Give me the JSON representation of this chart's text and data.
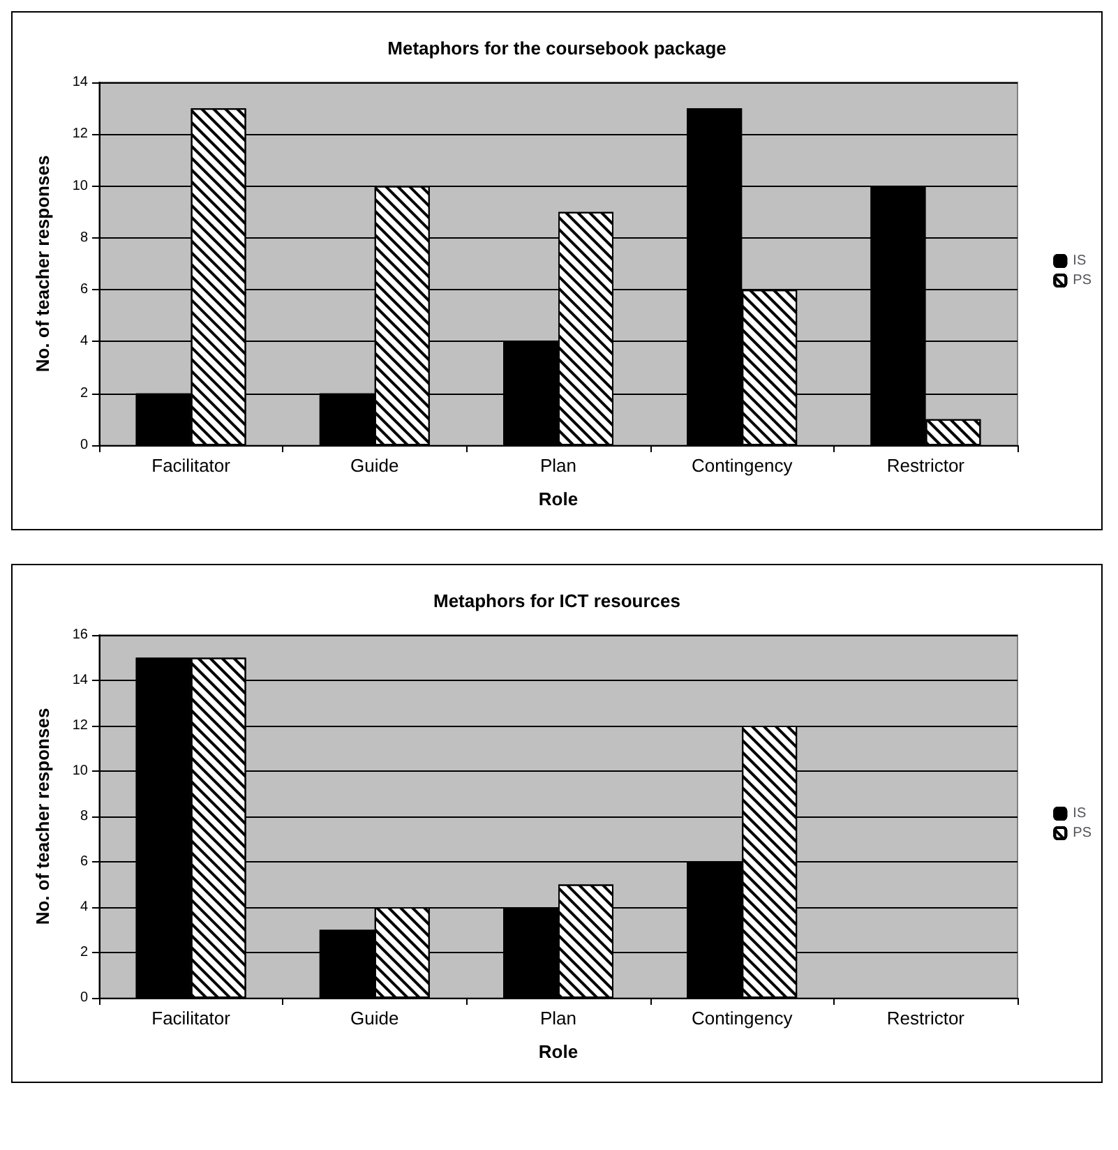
{
  "chart_data": [
    {
      "type": "bar",
      "title": "Metaphors for the coursebook package",
      "xlabel": "Role",
      "ylabel": "No. of teacher responses",
      "categories": [
        "Facilitator",
        "Guide",
        "Plan",
        "Contingency",
        "Restrictor"
      ],
      "series": [
        {
          "name": "IS",
          "color": "#000000",
          "values": [
            2,
            2,
            4,
            13,
            10
          ]
        },
        {
          "name": "PS",
          "color": "#ffffff",
          "values": [
            13,
            10,
            9,
            6,
            1
          ]
        }
      ],
      "ylim": [
        0,
        14
      ],
      "yticks": [
        0,
        2,
        4,
        6,
        8,
        10,
        12,
        14
      ],
      "grid": "y",
      "legend": "right"
    },
    {
      "type": "bar",
      "title": "Metaphors for ICT resources",
      "xlabel": "Role",
      "ylabel": "No. of teacher responses",
      "categories": [
        "Facilitator",
        "Guide",
        "Plan",
        "Contingency",
        "Restrictor"
      ],
      "series": [
        {
          "name": "IS",
          "color": "#000000",
          "values": [
            15,
            3,
            4,
            6,
            null
          ]
        },
        {
          "name": "PS",
          "color": "#ffffff",
          "values": [
            15,
            4,
            5,
            12,
            null
          ]
        }
      ],
      "ylim": [
        0,
        16
      ],
      "yticks": [
        0,
        2,
        4,
        6,
        8,
        10,
        12,
        14,
        16
      ],
      "grid": "y",
      "legend": "right"
    }
  ]
}
